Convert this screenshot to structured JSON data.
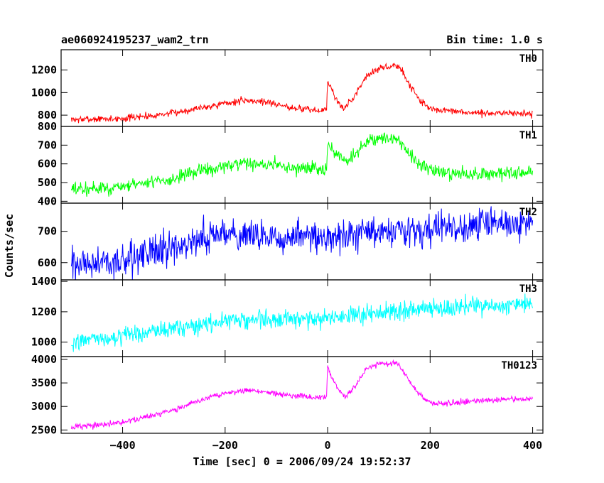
{
  "chart_data": {
    "type": "line",
    "title": "ae060924195237_wam2_trn",
    "bin_time_label": "Bin time: 1.0 s",
    "xlabel": "Time [sec] 0 = 2006/09/24 19:52:37",
    "ylabel": "Counts/sec",
    "xlim": [
      -520,
      420
    ],
    "x_ticks": [
      -400,
      -200,
      0,
      200,
      400
    ],
    "x_tick_labels": [
      "−400",
      "−200",
      "0",
      "200",
      "400"
    ],
    "x_data_range": [
      -500,
      400
    ],
    "grid": false,
    "series": [
      {
        "name": "TH0",
        "color": "#ff0000",
        "ylim": [
          700,
          1380
        ],
        "y_ticks": [
          800,
          1000,
          1200
        ],
        "y_tick_labels": [
          "800",
          "1000",
          "1200"
        ],
        "noise": 22,
        "profile": [
          [
            -500,
            760
          ],
          [
            -400,
            770
          ],
          [
            -300,
            820
          ],
          [
            -250,
            865
          ],
          [
            -200,
            905
          ],
          [
            -160,
            930
          ],
          [
            -120,
            920
          ],
          [
            -80,
            875
          ],
          [
            -20,
            840
          ],
          [
            -2,
            850
          ],
          [
            0,
            1100
          ],
          [
            5,
            1055
          ],
          [
            15,
            960
          ],
          [
            30,
            850
          ],
          [
            50,
            950
          ],
          [
            75,
            1150
          ],
          [
            100,
            1210
          ],
          [
            130,
            1240
          ],
          [
            140,
            1230
          ],
          [
            160,
            1070
          ],
          [
            185,
            905
          ],
          [
            205,
            850
          ],
          [
            250,
            830
          ],
          [
            300,
            815
          ],
          [
            350,
            820
          ],
          [
            400,
            810
          ]
        ]
      },
      {
        "name": "TH1",
        "color": "#00ff00",
        "ylim": [
          390,
          800
        ],
        "y_ticks": [
          400,
          500,
          600,
          700,
          800
        ],
        "y_tick_labels": [
          "400",
          "500",
          "600",
          "700",
          "800"
        ],
        "noise": 25,
        "profile": [
          [
            -500,
            460
          ],
          [
            -400,
            475
          ],
          [
            -300,
            520
          ],
          [
            -250,
            560
          ],
          [
            -200,
            585
          ],
          [
            -160,
            600
          ],
          [
            -100,
            595
          ],
          [
            -50,
            575
          ],
          [
            -2,
            570
          ],
          [
            0,
            720
          ],
          [
            5,
            690
          ],
          [
            20,
            640
          ],
          [
            35,
            610
          ],
          [
            55,
            650
          ],
          [
            75,
            715
          ],
          [
            100,
            735
          ],
          [
            130,
            740
          ],
          [
            140,
            720
          ],
          [
            160,
            650
          ],
          [
            185,
            580
          ],
          [
            205,
            560
          ],
          [
            250,
            550
          ],
          [
            300,
            545
          ],
          [
            350,
            552
          ],
          [
            400,
            560
          ]
        ]
      },
      {
        "name": "TH2",
        "color": "#0000ff",
        "ylim": [
          545,
          790
        ],
        "y_ticks": [
          600,
          700
        ],
        "y_tick_labels": [
          "600",
          "700"
        ],
        "noise": 38,
        "profile": [
          [
            -500,
            585
          ],
          [
            -400,
            610
          ],
          [
            -300,
            650
          ],
          [
            -200,
            690
          ],
          [
            -150,
            690
          ],
          [
            -100,
            675
          ],
          [
            0,
            685
          ],
          [
            100,
            695
          ],
          [
            200,
            705
          ],
          [
            300,
            715
          ],
          [
            400,
            725
          ]
        ]
      },
      {
        "name": "TH3",
        "color": "#00ffff",
        "ylim": [
          905,
          1410
        ],
        "y_ticks": [
          1000,
          1200,
          1400
        ],
        "y_tick_labels": [
          "1000",
          "1200",
          "1400"
        ],
        "noise": 42,
        "profile": [
          [
            -500,
            1000
          ],
          [
            -400,
            1040
          ],
          [
            -300,
            1090
          ],
          [
            -200,
            1140
          ],
          [
            -100,
            1150
          ],
          [
            0,
            1160
          ],
          [
            100,
            1190
          ],
          [
            200,
            1215
          ],
          [
            300,
            1235
          ],
          [
            400,
            1250
          ]
        ]
      },
      {
        "name": "TH0123",
        "color": "#ff00ff",
        "ylim": [
          2430,
          4060
        ],
        "y_ticks": [
          2500,
          3000,
          3500,
          4000
        ],
        "y_tick_labels": [
          "2500",
          "3000",
          "3500",
          "4000"
        ],
        "noise": 45,
        "profile": [
          [
            -500,
            2560
          ],
          [
            -400,
            2660
          ],
          [
            -300,
            2920
          ],
          [
            -250,
            3130
          ],
          [
            -200,
            3270
          ],
          [
            -160,
            3340
          ],
          [
            -120,
            3310
          ],
          [
            -80,
            3230
          ],
          [
            -20,
            3190
          ],
          [
            -2,
            3200
          ],
          [
            0,
            3900
          ],
          [
            5,
            3700
          ],
          [
            20,
            3380
          ],
          [
            35,
            3200
          ],
          [
            55,
            3450
          ],
          [
            75,
            3800
          ],
          [
            100,
            3900
          ],
          [
            130,
            3920
          ],
          [
            140,
            3880
          ],
          [
            165,
            3450
          ],
          [
            190,
            3130
          ],
          [
            210,
            3060
          ],
          [
            250,
            3080
          ],
          [
            300,
            3130
          ],
          [
            350,
            3160
          ],
          [
            400,
            3150
          ]
        ]
      }
    ]
  }
}
